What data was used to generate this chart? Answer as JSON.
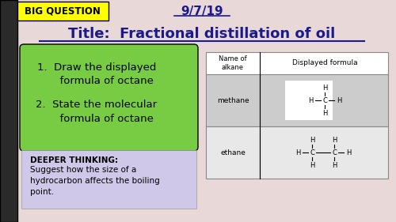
{
  "bg_color": "#e8d8d8",
  "title": "Title:  Fractional distillation of oil",
  "date": "9/7/19",
  "big_question": "BIG QUESTION",
  "bq_bg": "#ffff00",
  "left_panel_bg": "#77cc44",
  "left_panel_text1": "1.  Draw the displayed\n      formula of octane",
  "left_panel_text2": "2.  State the molecular\n      formula of octane",
  "deeper_thinking_title": "DEEPER THINKING:",
  "deeper_thinking_body": "Suggest how the size of a\nhydrocarbon affects the boiling\npoint.",
  "deeper_bg": "#d0c8e8",
  "dark_stripe_color": "#2a2a2a",
  "table_header1": "Name of\nalkane",
  "table_header2": "Displayed formula",
  "row1_name": "methane",
  "row2_name": "ethane",
  "title_color": "#1a1a8c",
  "date_color": "#1a1a8c",
  "table_row1_bg": "#cccccc",
  "table_row2_bg": "#e8e8e8"
}
